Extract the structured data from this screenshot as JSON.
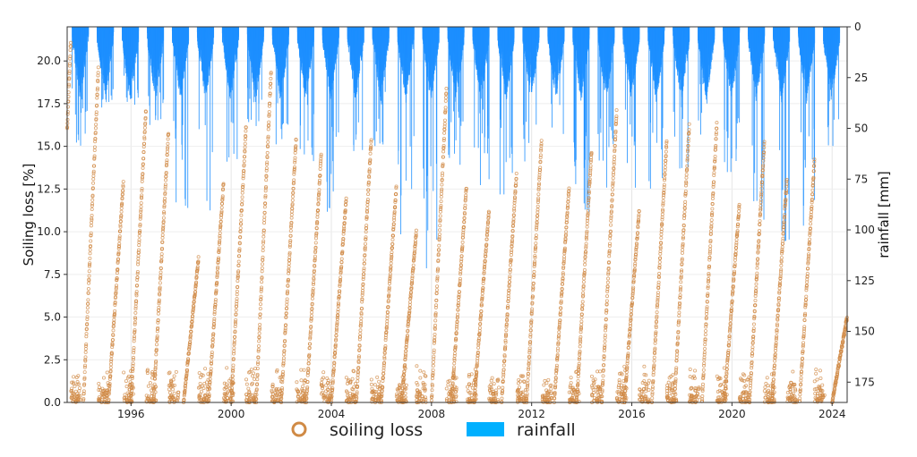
{
  "chart_data": {
    "type": "scatter",
    "title": "",
    "xlabel": "",
    "ylabel": "Soiling loss [%]",
    "y2label": "rainfall [mm]",
    "xlim": [
      1993.45,
      2024.6
    ],
    "ylim": [
      0,
      22
    ],
    "y2lim": [
      0,
      185
    ],
    "y2_inverted": true,
    "grid": true,
    "legend_placement": "bottom-center",
    "x_ticks": [
      1996,
      2000,
      2004,
      2008,
      2012,
      2016,
      2020,
      2024
    ],
    "y_ticks": [
      "0.0",
      "2.5",
      "5.0",
      "7.5",
      "10.0",
      "12.5",
      "15.0",
      "17.5",
      "20.0"
    ],
    "y2_ticks": [
      0,
      25,
      50,
      75,
      100,
      125,
      150,
      175
    ],
    "colors": {
      "soiling": "#d08a45",
      "rainfall": "#1e90ff",
      "legend_rainfall": "#00b0ff"
    },
    "series": [
      {
        "name": "soiling loss",
        "kind": "scatter-open-circle",
        "cycles_peak_year_and_value": [
          [
            1993.6,
            21.4
          ],
          [
            1994.7,
            19.7
          ],
          [
            1995.7,
            13.0
          ],
          [
            1996.6,
            17.3
          ],
          [
            1997.5,
            16.0
          ],
          [
            1998.7,
            8.5
          ],
          [
            1999.7,
            13.0
          ],
          [
            2000.6,
            16.3
          ],
          [
            2001.6,
            19.6
          ],
          [
            2002.6,
            15.6
          ],
          [
            2003.6,
            14.6
          ],
          [
            2004.6,
            12.1
          ],
          [
            2005.6,
            15.6
          ],
          [
            2006.6,
            12.7
          ],
          [
            2007.4,
            10.1
          ],
          [
            2008.6,
            18.5
          ],
          [
            2009.4,
            12.7
          ],
          [
            2010.3,
            11.3
          ],
          [
            2011.4,
            13.5
          ],
          [
            2012.4,
            15.4
          ],
          [
            2013.5,
            12.7
          ],
          [
            2014.4,
            14.9
          ],
          [
            2015.4,
            17.2
          ],
          [
            2016.3,
            11.3
          ],
          [
            2017.4,
            15.5
          ],
          [
            2018.3,
            16.4
          ],
          [
            2019.4,
            16.5
          ],
          [
            2020.3,
            11.7
          ],
          [
            2021.3,
            15.4
          ],
          [
            2022.2,
            13.2
          ],
          [
            2023.3,
            14.3
          ],
          [
            2024.6,
            5.0
          ]
        ]
      },
      {
        "name": "rainfall",
        "kind": "bar-from-top",
        "wet_season_max_mm_by_year": [
          [
            1994,
            60
          ],
          [
            1995,
            50
          ],
          [
            1996,
            40
          ],
          [
            1997,
            60
          ],
          [
            1998,
            90
          ],
          [
            1999,
            95
          ],
          [
            2000,
            70
          ],
          [
            2001,
            50
          ],
          [
            2002,
            60
          ],
          [
            2003,
            70
          ],
          [
            2004,
            95
          ],
          [
            2005,
            75
          ],
          [
            2006,
            60
          ],
          [
            2007,
            105
          ],
          [
            2008,
            120
          ],
          [
            2009,
            75
          ],
          [
            2010,
            80
          ],
          [
            2011,
            90
          ],
          [
            2012,
            80
          ],
          [
            2013,
            60
          ],
          [
            2014,
            95
          ],
          [
            2015,
            85
          ],
          [
            2016,
            80
          ],
          [
            2017,
            90
          ],
          [
            2018,
            70
          ],
          [
            2019,
            55
          ],
          [
            2020,
            80
          ],
          [
            2021,
            95
          ],
          [
            2022,
            110
          ],
          [
            2023,
            100
          ],
          [
            2024,
            70
          ]
        ]
      }
    ],
    "legend": [
      "soiling loss",
      "rainfall"
    ]
  }
}
